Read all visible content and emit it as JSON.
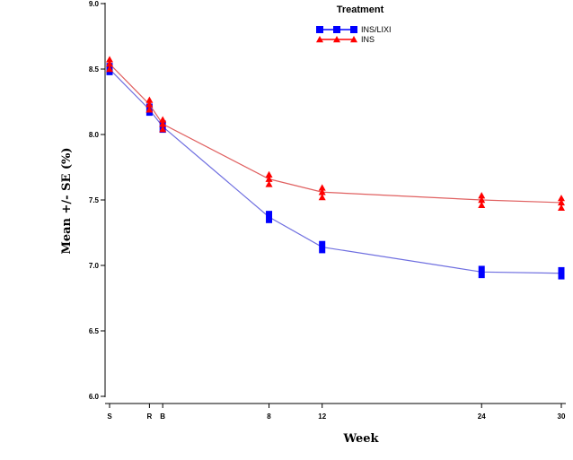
{
  "chart_data": {
    "type": "line",
    "title": "",
    "xlabel": "Week",
    "ylabel": "Mean +/- SE (%)",
    "ylim": [
      6.0,
      9.0
    ],
    "yticks": [
      "6.0",
      "6.5",
      "7.0",
      "7.5",
      "8.0",
      "8.5",
      "9.0"
    ],
    "xticks": [
      {
        "label": "S",
        "pos": -4
      },
      {
        "label": "R",
        "pos": -1
      },
      {
        "label": "B",
        "pos": 0
      },
      {
        "label": "8",
        "pos": 8
      },
      {
        "label": "12",
        "pos": 12
      },
      {
        "label": "24",
        "pos": 24
      },
      {
        "label": "30",
        "pos": 30
      }
    ],
    "xlim": [
      -4,
      30
    ],
    "grid": false,
    "legend": {
      "title": "Treatment",
      "placement": "top-center"
    },
    "series": [
      {
        "name": "INS/LIXI",
        "color": "#0000ff",
        "line_color": "#6f6fe0",
        "marker": "square",
        "points": [
          {
            "x": -4,
            "y": 8.5,
            "se": 0.04
          },
          {
            "x": -1,
            "y": 8.19,
            "se": 0.04
          },
          {
            "x": 0,
            "y": 8.06,
            "se": 0.04
          },
          {
            "x": 8,
            "y": 7.37,
            "se": 0.04
          },
          {
            "x": 12,
            "y": 7.14,
            "se": 0.04
          },
          {
            "x": 24,
            "y": 6.95,
            "se": 0.04
          },
          {
            "x": 30,
            "y": 6.94,
            "se": 0.04
          }
        ]
      },
      {
        "name": "INS",
        "color": "#ff0000",
        "line_color": "#e06060",
        "marker": "triangle",
        "points": [
          {
            "x": -4,
            "y": 8.54,
            "se": 0.04
          },
          {
            "x": -1,
            "y": 8.23,
            "se": 0.04
          },
          {
            "x": 0,
            "y": 8.08,
            "se": 0.04
          },
          {
            "x": 8,
            "y": 7.66,
            "se": 0.04
          },
          {
            "x": 12,
            "y": 7.56,
            "se": 0.04
          },
          {
            "x": 24,
            "y": 7.5,
            "se": 0.04
          },
          {
            "x": 30,
            "y": 7.48,
            "se": 0.04
          }
        ]
      }
    ]
  }
}
